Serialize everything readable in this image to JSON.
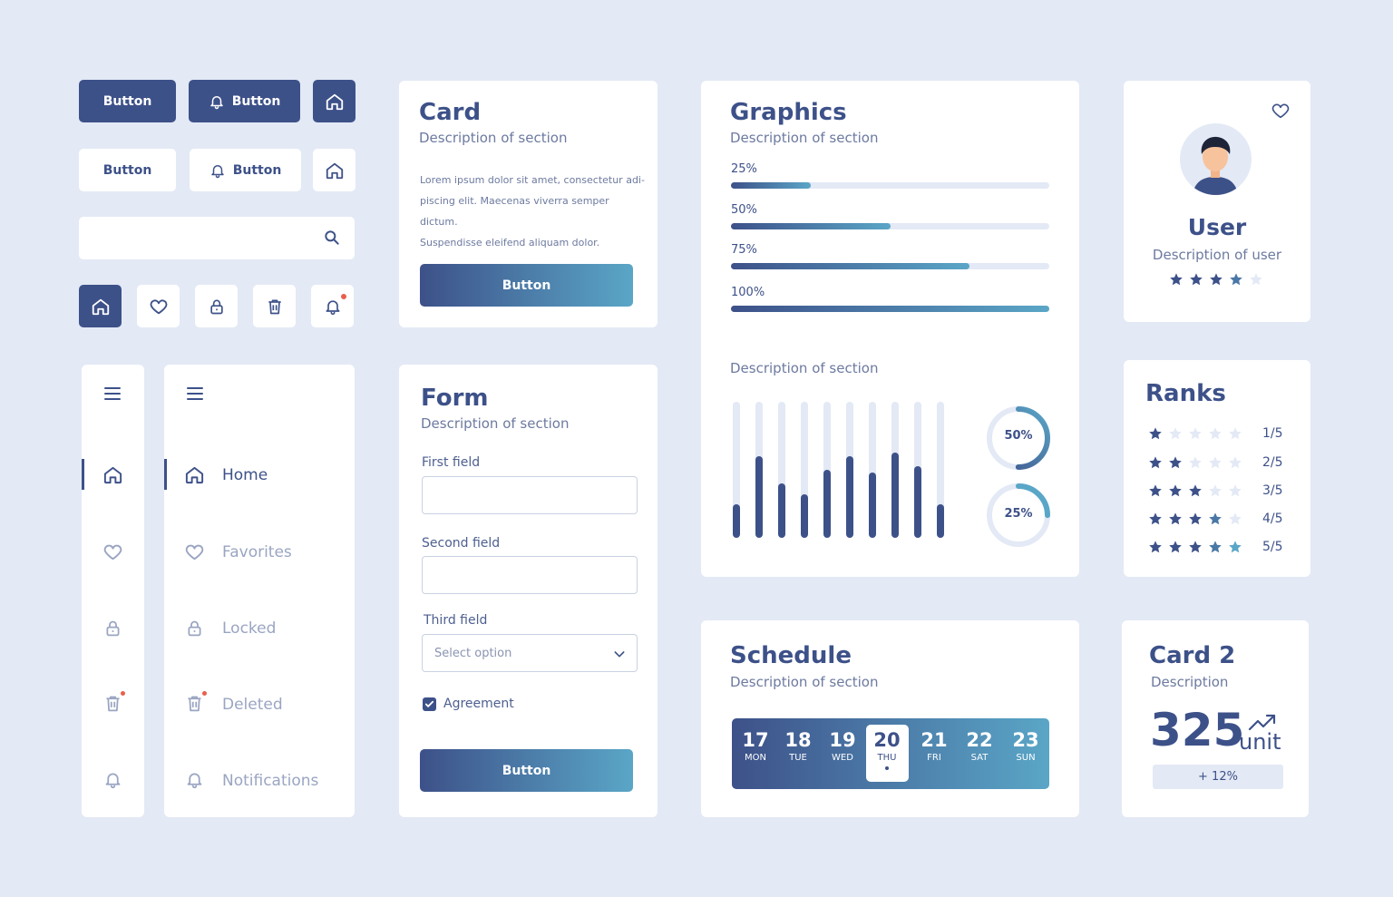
{
  "buttons": {
    "primary_label": "Button",
    "primary_icon_label": "Button",
    "secondary_label": "Button",
    "secondary_icon_label": "Button"
  },
  "search": {
    "placeholder": ""
  },
  "card": {
    "title": "Card",
    "description": "Description of section",
    "body_line1": "Lorem ipsum dolor sit amet, consectetur adi-",
    "body_line2": "piscing elit. Maecenas viverra semper dictum.",
    "body_line3": "Suspendisse eleifend aliquam dolor.",
    "button_label": "Button"
  },
  "graphics": {
    "title": "Graphics",
    "description": "Description of section",
    "progress": [
      {
        "label": "25%",
        "value": 0.25
      },
      {
        "label": "50%",
        "value": 0.5
      },
      {
        "label": "75%",
        "value": 0.75
      },
      {
        "label": "100%",
        "value": 1.0
      }
    ],
    "section2_description": "Description of section",
    "bars": [
      0.25,
      0.6,
      0.4,
      0.32,
      0.5,
      0.6,
      0.48,
      0.63,
      0.53,
      0.25
    ],
    "donuts": [
      {
        "label": "50%",
        "value": 0.5
      },
      {
        "label": "25%",
        "value": 0.25
      }
    ]
  },
  "user": {
    "name": "User",
    "description": "Description of user",
    "rating": 4,
    "rating_max": 5
  },
  "ranks": {
    "title": "Ranks",
    "rows": [
      {
        "label": "1/5",
        "value": 1
      },
      {
        "label": "2/5",
        "value": 2
      },
      {
        "label": "3/5",
        "value": 3
      },
      {
        "label": "4/5",
        "value": 4
      },
      {
        "label": "5/5",
        "value": 5
      }
    ]
  },
  "nav": {
    "items": [
      {
        "label": "Home",
        "icon": "home-icon",
        "active": true
      },
      {
        "label": "Favorites",
        "icon": "heart-icon",
        "active": false
      },
      {
        "label": "Locked",
        "icon": "lock-icon",
        "active": false
      },
      {
        "label": "Deleted",
        "icon": "trash-icon",
        "active": false
      },
      {
        "label": "Notifications",
        "icon": "bell-icon",
        "active": false
      }
    ]
  },
  "form": {
    "title": "Form",
    "description": "Description of section",
    "field1_label": "First field",
    "field1_value": "",
    "field2_label": "Second field",
    "field2_value": "",
    "field3_label": "Third field",
    "select_placeholder": "Select option",
    "checkbox_label": "Agreement",
    "checkbox_checked": true,
    "button_label": "Button"
  },
  "schedule": {
    "title": "Schedule",
    "description": "Description of section",
    "days": [
      {
        "num": "17",
        "wd": "MON"
      },
      {
        "num": "18",
        "wd": "TUE"
      },
      {
        "num": "19",
        "wd": "WED"
      },
      {
        "num": "20",
        "wd": "THU"
      },
      {
        "num": "21",
        "wd": "FRI"
      },
      {
        "num": "22",
        "wd": "SAT"
      },
      {
        "num": "23",
        "wd": "SUN"
      }
    ],
    "selected_index": 3
  },
  "card2": {
    "title": "Card 2",
    "description": "Description",
    "value": "325",
    "unit": "unit",
    "change": "+ 12%"
  },
  "colors": {
    "primary": "#3d5189",
    "accent": "#5aa6c7",
    "background": "#e3e9f5",
    "notification_dot": "#e8604c"
  }
}
